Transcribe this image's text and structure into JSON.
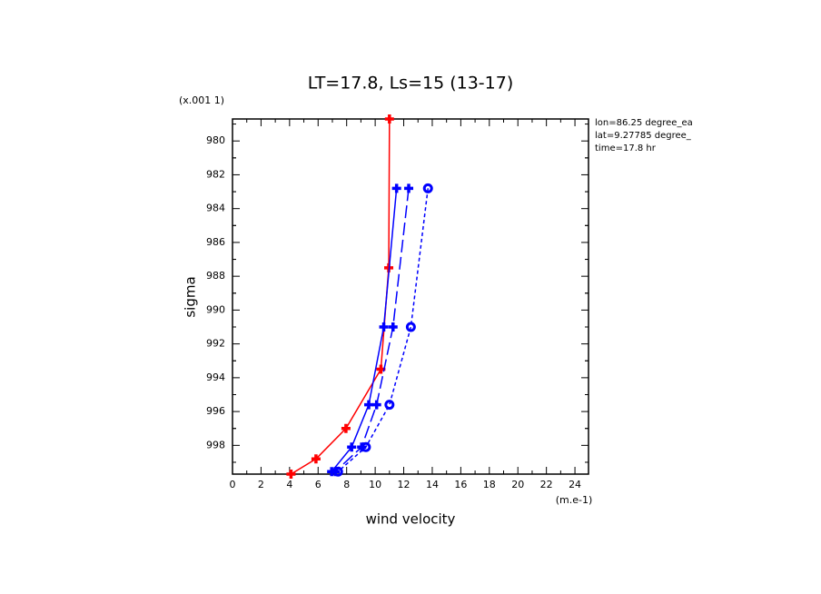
{
  "chart_data": {
    "type": "line",
    "title": "LT=17.8, Ls=15 (13-17)",
    "x_label": "wind velocity",
    "x_units": "(m.e-1)",
    "y_label": "sigma",
    "y_units": "(x.001 1)",
    "annotations": [
      "lon=86.25 degree_ea",
      "lat=9.27785 degree_",
      "time=17.8 hr"
    ],
    "xlim": [
      0,
      24.95
    ],
    "xticks": [
      0,
      2,
      4,
      6,
      8,
      10,
      12,
      14,
      16,
      18,
      20,
      22,
      24
    ],
    "ylim": [
      999.7,
      978.7
    ],
    "yticks": [
      980,
      982,
      984,
      986,
      988,
      990,
      992,
      994,
      996,
      998
    ],
    "series": [
      {
        "color": "#ff0000",
        "dash": "solid",
        "marker": "plus",
        "x": [
          11.0,
          10.95,
          10.4,
          7.95,
          5.85,
          4.1
        ],
        "y": [
          978.7,
          987.5,
          993.5,
          997.0,
          998.8,
          999.7
        ]
      },
      {
        "color": "#0000ff",
        "dash": "solid",
        "marker": "plus",
        "x": [
          11.5,
          10.6,
          9.55,
          8.35,
          6.95
        ],
        "y": [
          982.8,
          991.0,
          995.6,
          998.1,
          999.55
        ]
      },
      {
        "color": "#0000ff",
        "dash": "long",
        "marker": "plus",
        "x": [
          12.35,
          11.25,
          10.1,
          9.05,
          7.2
        ],
        "y": [
          982.8,
          991.0,
          995.6,
          998.1,
          999.55
        ]
      },
      {
        "color": "#0000ff",
        "dash": "short",
        "marker": "circle",
        "x": [
          13.7,
          12.5,
          11.0,
          9.35,
          7.4
        ],
        "y": [
          982.8,
          991.0,
          995.6,
          998.1,
          999.55
        ]
      }
    ]
  }
}
